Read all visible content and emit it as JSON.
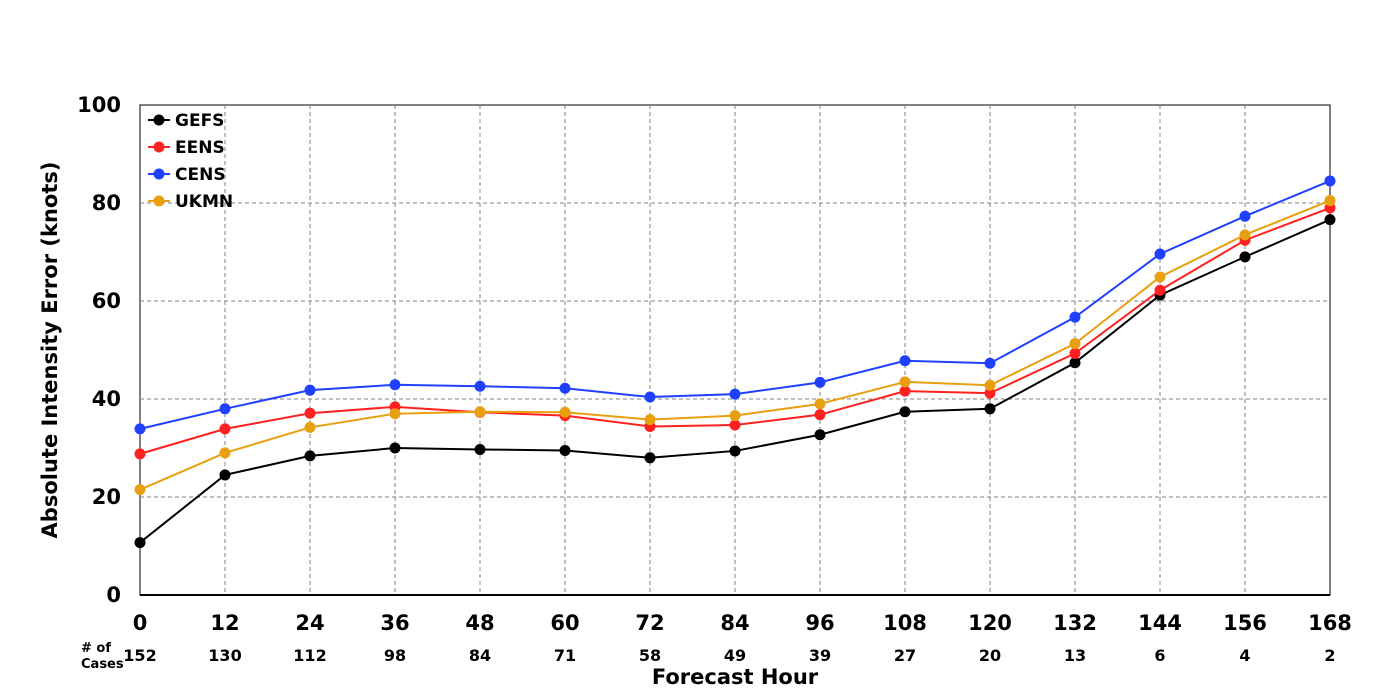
{
  "chart_data": {
    "type": "line",
    "title": "",
    "xlabel": "Forecast Hour",
    "ylabel": "Absolute Intensity Error (knots)",
    "x": [
      0,
      12,
      24,
      36,
      48,
      60,
      72,
      84,
      96,
      108,
      120,
      132,
      144,
      156,
      168
    ],
    "xlim": [
      0,
      168
    ],
    "ylim": [
      0,
      100
    ],
    "yticks": [
      0,
      20,
      40,
      60,
      80,
      100
    ],
    "grid": true,
    "legend_position": "top-left",
    "cases_caption": "# of Cases",
    "cases": [
      152,
      130,
      112,
      98,
      84,
      71,
      58,
      49,
      39,
      27,
      20,
      13,
      6,
      4,
      2
    ],
    "series": [
      {
        "name": "GEFS",
        "color": "#000000",
        "values": [
          10.7,
          24.5,
          28.4,
          30.0,
          29.7,
          29.5,
          28.0,
          29.4,
          32.7,
          37.4,
          38.0,
          47.4,
          61.2,
          69.0,
          76.6
        ]
      },
      {
        "name": "EENS",
        "color": "#ff2020",
        "values": [
          28.8,
          33.9,
          37.1,
          38.4,
          37.3,
          36.6,
          34.4,
          34.7,
          36.8,
          41.6,
          41.2,
          49.3,
          62.2,
          72.4,
          79.0
        ]
      },
      {
        "name": "CENS",
        "color": "#2040ff",
        "values": [
          33.9,
          38.0,
          41.8,
          42.9,
          42.6,
          42.2,
          40.4,
          41.0,
          43.4,
          47.8,
          47.3,
          56.7,
          69.6,
          77.3,
          84.5
        ]
      },
      {
        "name": "UKMN",
        "color": "#e8a010",
        "values": [
          21.5,
          29.0,
          34.2,
          37.0,
          37.4,
          37.3,
          35.8,
          36.6,
          39.0,
          43.5,
          42.8,
          51.3,
          64.9,
          73.5,
          80.5
        ]
      }
    ]
  }
}
